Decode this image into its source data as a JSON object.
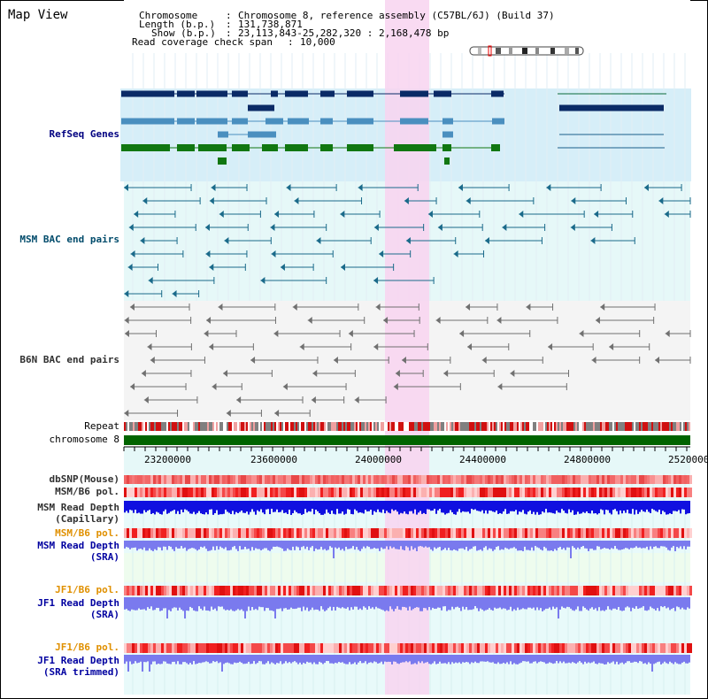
{
  "page_title": "Map View",
  "header": {
    "chromosome_label": "Chromosome",
    "chromosome_value": "Chromosome 8, reference assembly (C57BL/6J) (Build 37)",
    "length_label": "Length (b.p.)",
    "length_value": "131,738,871",
    "show_label": "Show (b.p.)",
    "show_value": "23,113,843-25,282,320 : 2,168,478 bp",
    "coverage_label": "Read coverage check span",
    "coverage_value": "10,000",
    "separator": ":"
  },
  "tracks": {
    "refseq": "RefSeq Genes",
    "msm_bac": "MSM BAC end pairs",
    "b6n_bac": "B6N BAC end pairs",
    "repeat": "Repeat",
    "chromosome": "chromosome 8",
    "dbsnp": "dbSNP(Mouse)",
    "msm_b6_pol_1": "MSM/B6 pol.",
    "msm_read_depth_cap_1": "MSM Read Depth",
    "msm_read_depth_cap_2": "(Capillary)",
    "msm_b6_pol_2": "MSM/B6 pol.",
    "msm_read_depth_sra_1": "MSM Read Depth",
    "msm_read_depth_sra_2": "(SRA)",
    "jf1_b6_pol_1": "JF1/B6 pol.",
    "jf1_read_depth_sra_1": "JF1 Read Depth",
    "jf1_read_depth_sra_2": "(SRA)",
    "jf1_b6_pol_2": "JF1/B6 pol.",
    "jf1_read_depth_trim_1": "JF1 Read Depth",
    "jf1_read_depth_trim_2": "(SRA trimmed)"
  },
  "axis_ticks": [
    "23200000",
    "23600000",
    "24000000",
    "24400000",
    "24800000",
    "25200000"
  ],
  "colors": {
    "refseq_bg": "#d6eef8",
    "bac_bg": "#e6f8f8",
    "highlight": "#f8d4f0",
    "chromosome_bar": "#006400",
    "depth_blue": "#1010e0",
    "depth_light": "#7a7aee"
  }
}
